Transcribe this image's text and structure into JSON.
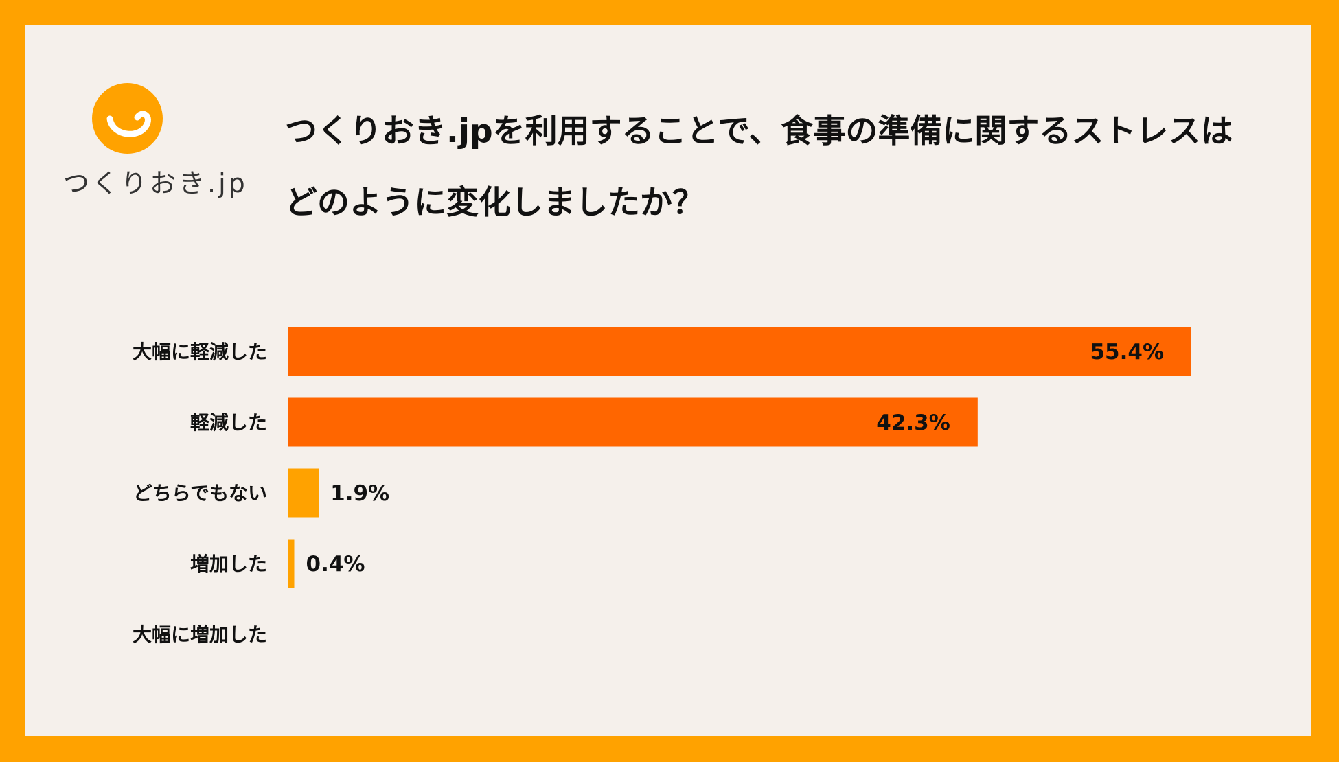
{
  "brand": {
    "name": "つくりおき.jp",
    "color": "#FFA200"
  },
  "title": "つくりおき.jpを利用することで、食事の準備に関するストレスはどのように変化しましたか？",
  "chart_data": {
    "type": "bar",
    "orientation": "horizontal",
    "title": "つくりおき.jpを利用することで、食事の準備に関するストレスはどのように変化しましたか？",
    "categories": [
      "大幅に軽減した",
      "軽減した",
      "どちらでもない",
      "増加した",
      "大幅に増加した"
    ],
    "values": [
      55.4,
      42.3,
      1.9,
      0.4,
      0
    ],
    "value_labels": [
      "55.4%",
      "42.3%",
      "1.9%",
      "0.4%",
      ""
    ],
    "bar_colors": [
      "#FF6600",
      "#FF6600",
      "#FFA200",
      "#FFA200",
      "#FFA200"
    ],
    "xlim": [
      0,
      55.4
    ],
    "grid": false,
    "legend": "none"
  }
}
